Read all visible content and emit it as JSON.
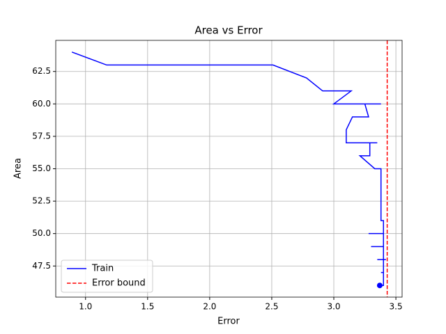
{
  "chart_data": {
    "type": "line",
    "title": "Area vs Error",
    "x_label": "Error",
    "y_label": "Area",
    "series": [
      {
        "name": "Train",
        "color": "#0000ff",
        "x": [
          0.89,
          1.17,
          2.51,
          2.78,
          2.91,
          3.14,
          3.0,
          3.38,
          3.25,
          3.28,
          3.15,
          3.1,
          3.1,
          3.35,
          3.29,
          3.29,
          3.21,
          3.33,
          3.38,
          3.38,
          3.4,
          3.4,
          3.28,
          3.4,
          3.4,
          3.3,
          3.4,
          3.4,
          3.35,
          3.42,
          3.4,
          3.4,
          3.38,
          3.4,
          3.4,
          3.37
        ],
        "values": [
          64,
          63,
          63,
          62,
          61,
          61,
          60,
          60,
          60,
          59,
          59,
          58,
          57,
          57,
          57,
          56,
          56,
          55,
          55,
          51,
          51,
          50,
          50,
          50,
          49,
          49,
          49,
          48,
          48,
          48,
          48,
          47,
          47,
          47,
          46,
          46
        ]
      }
    ],
    "current_point": {
      "x": 3.37,
      "y": 46,
      "color": "#0000ff"
    },
    "vlines": [
      {
        "name": "Error bound",
        "color": "#ff0000",
        "x": 3.43
      }
    ],
    "xlim": [
      0.76,
      3.55
    ],
    "ylim": [
      45.1,
      64.9
    ],
    "xticks": [
      {
        "value": 1.0,
        "label": "1.0"
      },
      {
        "value": 1.5,
        "label": "1.5"
      },
      {
        "value": 2.0,
        "label": "2.0"
      },
      {
        "value": 2.5,
        "label": "2.5"
      },
      {
        "value": 3.0,
        "label": "3.0"
      },
      {
        "value": 3.5,
        "label": "3.5"
      }
    ],
    "yticks": [
      47.5,
      {
        "value": 50.0,
        "label": "50.0"
      },
      52.5,
      {
        "value": 55.0,
        "label": "55.0"
      },
      57.5,
      {
        "value": 60.0,
        "label": "60.0"
      },
      62.5
    ],
    "grid": true,
    "legend": "lower left"
  }
}
